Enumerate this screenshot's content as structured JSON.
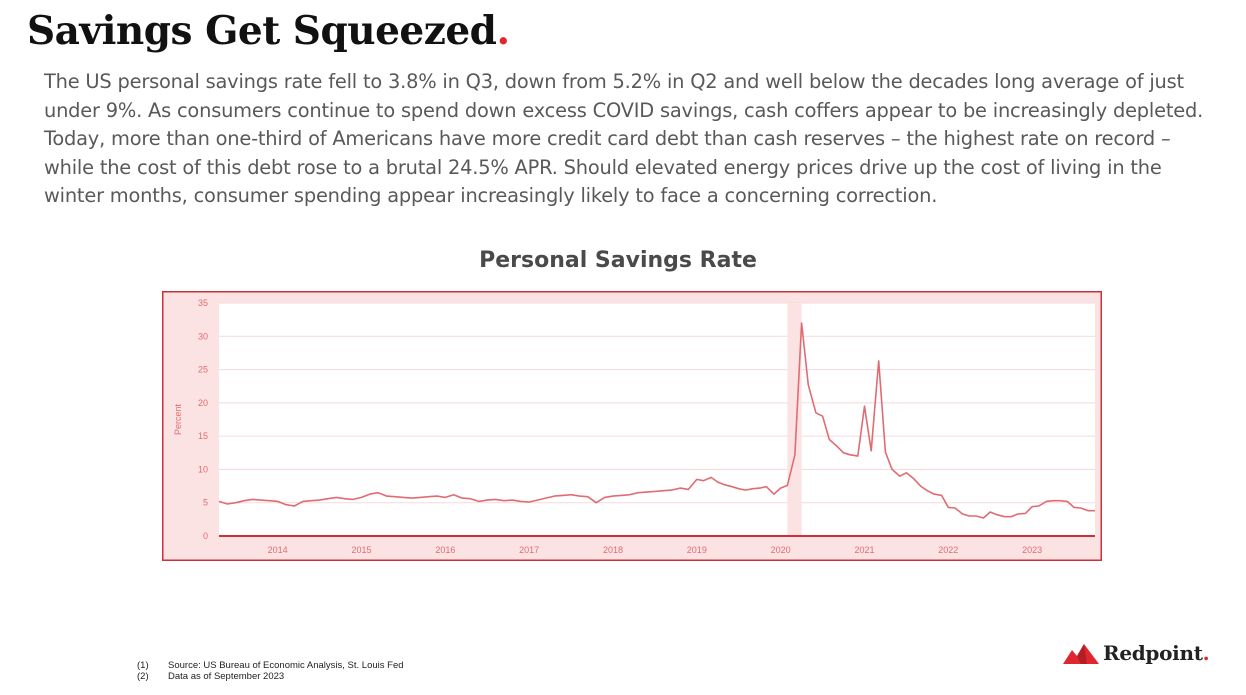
{
  "header": {
    "title": "Savings Get Squeezed",
    "title_dot": "."
  },
  "body_text": "The US personal savings rate fell to 3.8% in Q3, down from 5.2% in Q2 and well below the decades long average of just under 9%. As consumers continue to spend down excess COVID savings, cash coffers appear to be increasingly depleted. Today, more than one-third of Americans have more credit card debt than cash reserves – the highest rate on record – while the cost of this debt rose to a brutal 24.5% APR. Should elevated energy prices drive up the cost of living in the winter months, consumer spending appear increasingly likely to face a concerning correction.",
  "chart_data": {
    "type": "line",
    "title": "Personal Savings Rate",
    "xlabel": "",
    "ylabel": "Percent",
    "ylim": [
      0,
      35
    ],
    "yticks": [
      0,
      5,
      10,
      15,
      20,
      25,
      30,
      35
    ],
    "xlim": [
      2013.3,
      2023.75
    ],
    "xticks": [
      "2014",
      "2015",
      "2016",
      "2017",
      "2018",
      "2019",
      "2020",
      "2021",
      "2022",
      "2023"
    ],
    "grid": true,
    "recession_band": [
      2020.08,
      2020.25
    ],
    "series": [
      {
        "name": "Personal Savings Rate",
        "x": [
          2013.3,
          2013.4,
          2013.5,
          2013.6,
          2013.7,
          2013.8,
          2013.9,
          2014.0,
          2014.1,
          2014.2,
          2014.3,
          2014.4,
          2014.5,
          2014.6,
          2014.7,
          2014.8,
          2014.9,
          2015.0,
          2015.1,
          2015.2,
          2015.3,
          2015.4,
          2015.5,
          2015.6,
          2015.7,
          2015.8,
          2015.9,
          2016.0,
          2016.1,
          2016.2,
          2016.3,
          2016.4,
          2016.5,
          2016.6,
          2016.7,
          2016.8,
          2016.9,
          2017.0,
          2017.1,
          2017.2,
          2017.3,
          2017.4,
          2017.5,
          2017.6,
          2017.7,
          2017.8,
          2017.9,
          2018.0,
          2018.1,
          2018.2,
          2018.3,
          2018.4,
          2018.5,
          2018.6,
          2018.7,
          2018.8,
          2018.9,
          2019.0,
          2019.08,
          2019.17,
          2019.25,
          2019.33,
          2019.42,
          2019.5,
          2019.58,
          2019.67,
          2019.75,
          2019.83,
          2019.92,
          2020.0,
          2020.08,
          2020.17,
          2020.25,
          2020.33,
          2020.42,
          2020.5,
          2020.58,
          2020.67,
          2020.75,
          2020.83,
          2020.92,
          2021.0,
          2021.08,
          2021.17,
          2021.25,
          2021.33,
          2021.42,
          2021.5,
          2021.58,
          2021.67,
          2021.75,
          2021.83,
          2021.92,
          2022.0,
          2022.08,
          2022.17,
          2022.25,
          2022.33,
          2022.42,
          2022.5,
          2022.58,
          2022.67,
          2022.75,
          2022.83,
          2022.92,
          2023.0,
          2023.08,
          2023.17,
          2023.25,
          2023.33,
          2023.42,
          2023.5,
          2023.58,
          2023.67,
          2023.75
        ],
        "values": [
          5.2,
          4.8,
          5.0,
          5.3,
          5.5,
          5.4,
          5.3,
          5.2,
          4.7,
          4.5,
          5.2,
          5.3,
          5.4,
          5.6,
          5.8,
          5.6,
          5.5,
          5.8,
          6.3,
          6.5,
          6.0,
          5.9,
          5.8,
          5.7,
          5.8,
          5.9,
          6.0,
          5.8,
          6.2,
          5.7,
          5.6,
          5.2,
          5.4,
          5.5,
          5.3,
          5.4,
          5.2,
          5.1,
          5.4,
          5.7,
          6.0,
          6.1,
          6.2,
          6.0,
          5.9,
          5.0,
          5.8,
          6.0,
          6.1,
          6.2,
          6.5,
          6.6,
          6.7,
          6.8,
          6.9,
          7.2,
          7.0,
          8.5,
          8.3,
          8.8,
          8.1,
          7.7,
          7.4,
          7.1,
          6.9,
          7.1,
          7.2,
          7.4,
          6.3,
          7.2,
          7.6,
          12.2,
          32.0,
          22.7,
          18.5,
          18.0,
          14.5,
          13.5,
          12.5,
          12.2,
          12.0,
          19.5,
          12.8,
          26.3,
          12.6,
          10.0,
          9.0,
          9.5,
          8.7,
          7.5,
          6.8,
          6.3,
          6.1,
          4.3,
          4.2,
          3.3,
          3.0,
          3.0,
          2.7,
          3.6,
          3.2,
          2.9,
          2.9,
          3.3,
          3.4,
          4.4,
          4.5,
          5.2,
          5.3,
          5.3,
          5.2,
          4.3,
          4.2,
          3.8,
          3.8
        ]
      }
    ],
    "colors": {
      "line": "#e06c73",
      "frame": "#cc3038",
      "frame_fill": "#fbe3e4",
      "band": "#fbe3e4",
      "axis": "#cc3038",
      "tick_text": "#e06c73"
    }
  },
  "footnotes": [
    {
      "num": "(1)",
      "text": "Source: US Bureau of Economic Analysis, St. Louis Fed"
    },
    {
      "num": "(2)",
      "text": "Data as of September 2023"
    }
  ],
  "logo": {
    "text": "Redpoint",
    "dot": ".",
    "brand_color": "#e0262f"
  }
}
